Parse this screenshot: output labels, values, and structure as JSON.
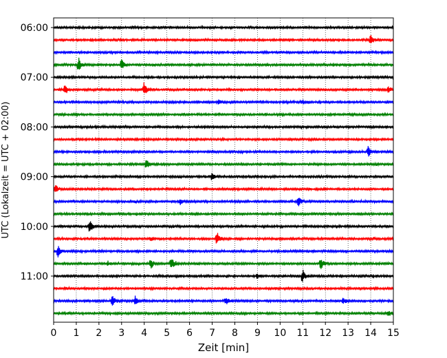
{
  "chart_data": {
    "type": "line",
    "title": "",
    "xlabel": "Zeit  [min]",
    "ylabel": "UTC (Lokalzeit = UTC + 02:00)",
    "xlim": [
      0,
      15
    ],
    "x_ticks": [
      0,
      1,
      2,
      3,
      4,
      5,
      6,
      7,
      8,
      9,
      10,
      11,
      12,
      13,
      14,
      15
    ],
    "grid": "vertical dotted lines at each minute",
    "trace_interval_minutes": 15,
    "first_trace_utc": "06:00",
    "y_tick_labels": [
      "06:00",
      "07:00",
      "08:00",
      "09:00",
      "10:00",
      "11:00"
    ],
    "color_cycle": [
      "#000000",
      "#ff0000",
      "#0000ff",
      "#008000"
    ],
    "traces": [
      {
        "start": "06:00",
        "events": []
      },
      {
        "start": "06:15",
        "events": [
          {
            "t": 14.0,
            "amp": 1.0
          }
        ]
      },
      {
        "start": "06:30",
        "events": []
      },
      {
        "start": "06:45",
        "events": [
          {
            "t": 1.1,
            "amp": 1.3
          },
          {
            "t": 3.0,
            "amp": 1.0
          }
        ]
      },
      {
        "start": "07:00",
        "events": []
      },
      {
        "start": "07:15",
        "events": [
          {
            "t": 0.5,
            "amp": 0.8
          },
          {
            "t": 4.0,
            "amp": 1.4
          },
          {
            "t": 14.8,
            "amp": 0.6
          }
        ]
      },
      {
        "start": "07:30",
        "events": [
          {
            "t": 7.3,
            "amp": 0.5
          },
          {
            "t": 11.0,
            "amp": 0.4
          }
        ]
      },
      {
        "start": "07:45",
        "events": []
      },
      {
        "start": "08:00",
        "events": []
      },
      {
        "start": "08:15",
        "events": []
      },
      {
        "start": "08:30",
        "events": [
          {
            "t": 13.9,
            "amp": 1.0
          }
        ]
      },
      {
        "start": "08:45",
        "events": [
          {
            "t": 4.1,
            "amp": 0.9
          }
        ]
      },
      {
        "start": "09:00",
        "events": [
          {
            "t": 7.0,
            "amp": 0.7
          }
        ]
      },
      {
        "start": "09:15",
        "events": [
          {
            "t": 0.1,
            "amp": 0.8
          }
        ]
      },
      {
        "start": "09:30",
        "events": [
          {
            "t": 10.8,
            "amp": 1.3
          },
          {
            "t": 5.6,
            "amp": 0.5
          }
        ]
      },
      {
        "start": "09:45",
        "events": []
      },
      {
        "start": "10:00",
        "events": [
          {
            "t": 1.6,
            "amp": 1.3
          }
        ]
      },
      {
        "start": "10:15",
        "events": [
          {
            "t": 7.2,
            "amp": 1.5
          },
          {
            "t": 4.3,
            "amp": 0.4
          }
        ]
      },
      {
        "start": "10:30",
        "events": [
          {
            "t": 0.2,
            "amp": 1.0
          }
        ]
      },
      {
        "start": "10:45",
        "events": [
          {
            "t": 4.3,
            "amp": 0.9
          },
          {
            "t": 5.2,
            "amp": 1.3
          },
          {
            "t": 11.8,
            "amp": 1.2
          },
          {
            "t": 2.4,
            "amp": 0.4
          }
        ]
      },
      {
        "start": "11:00",
        "events": [
          {
            "t": 11.0,
            "amp": 1.3
          },
          {
            "t": 9.0,
            "amp": 0.4
          }
        ]
      },
      {
        "start": "11:15",
        "events": []
      },
      {
        "start": "11:30",
        "events": [
          {
            "t": 2.6,
            "amp": 1.2
          },
          {
            "t": 3.6,
            "amp": 0.8
          },
          {
            "t": 7.6,
            "amp": 0.9
          },
          {
            "t": 12.8,
            "amp": 0.6
          }
        ]
      },
      {
        "start": "11:45",
        "events": [
          {
            "t": 14.8,
            "amp": 0.5
          }
        ]
      }
    ]
  }
}
